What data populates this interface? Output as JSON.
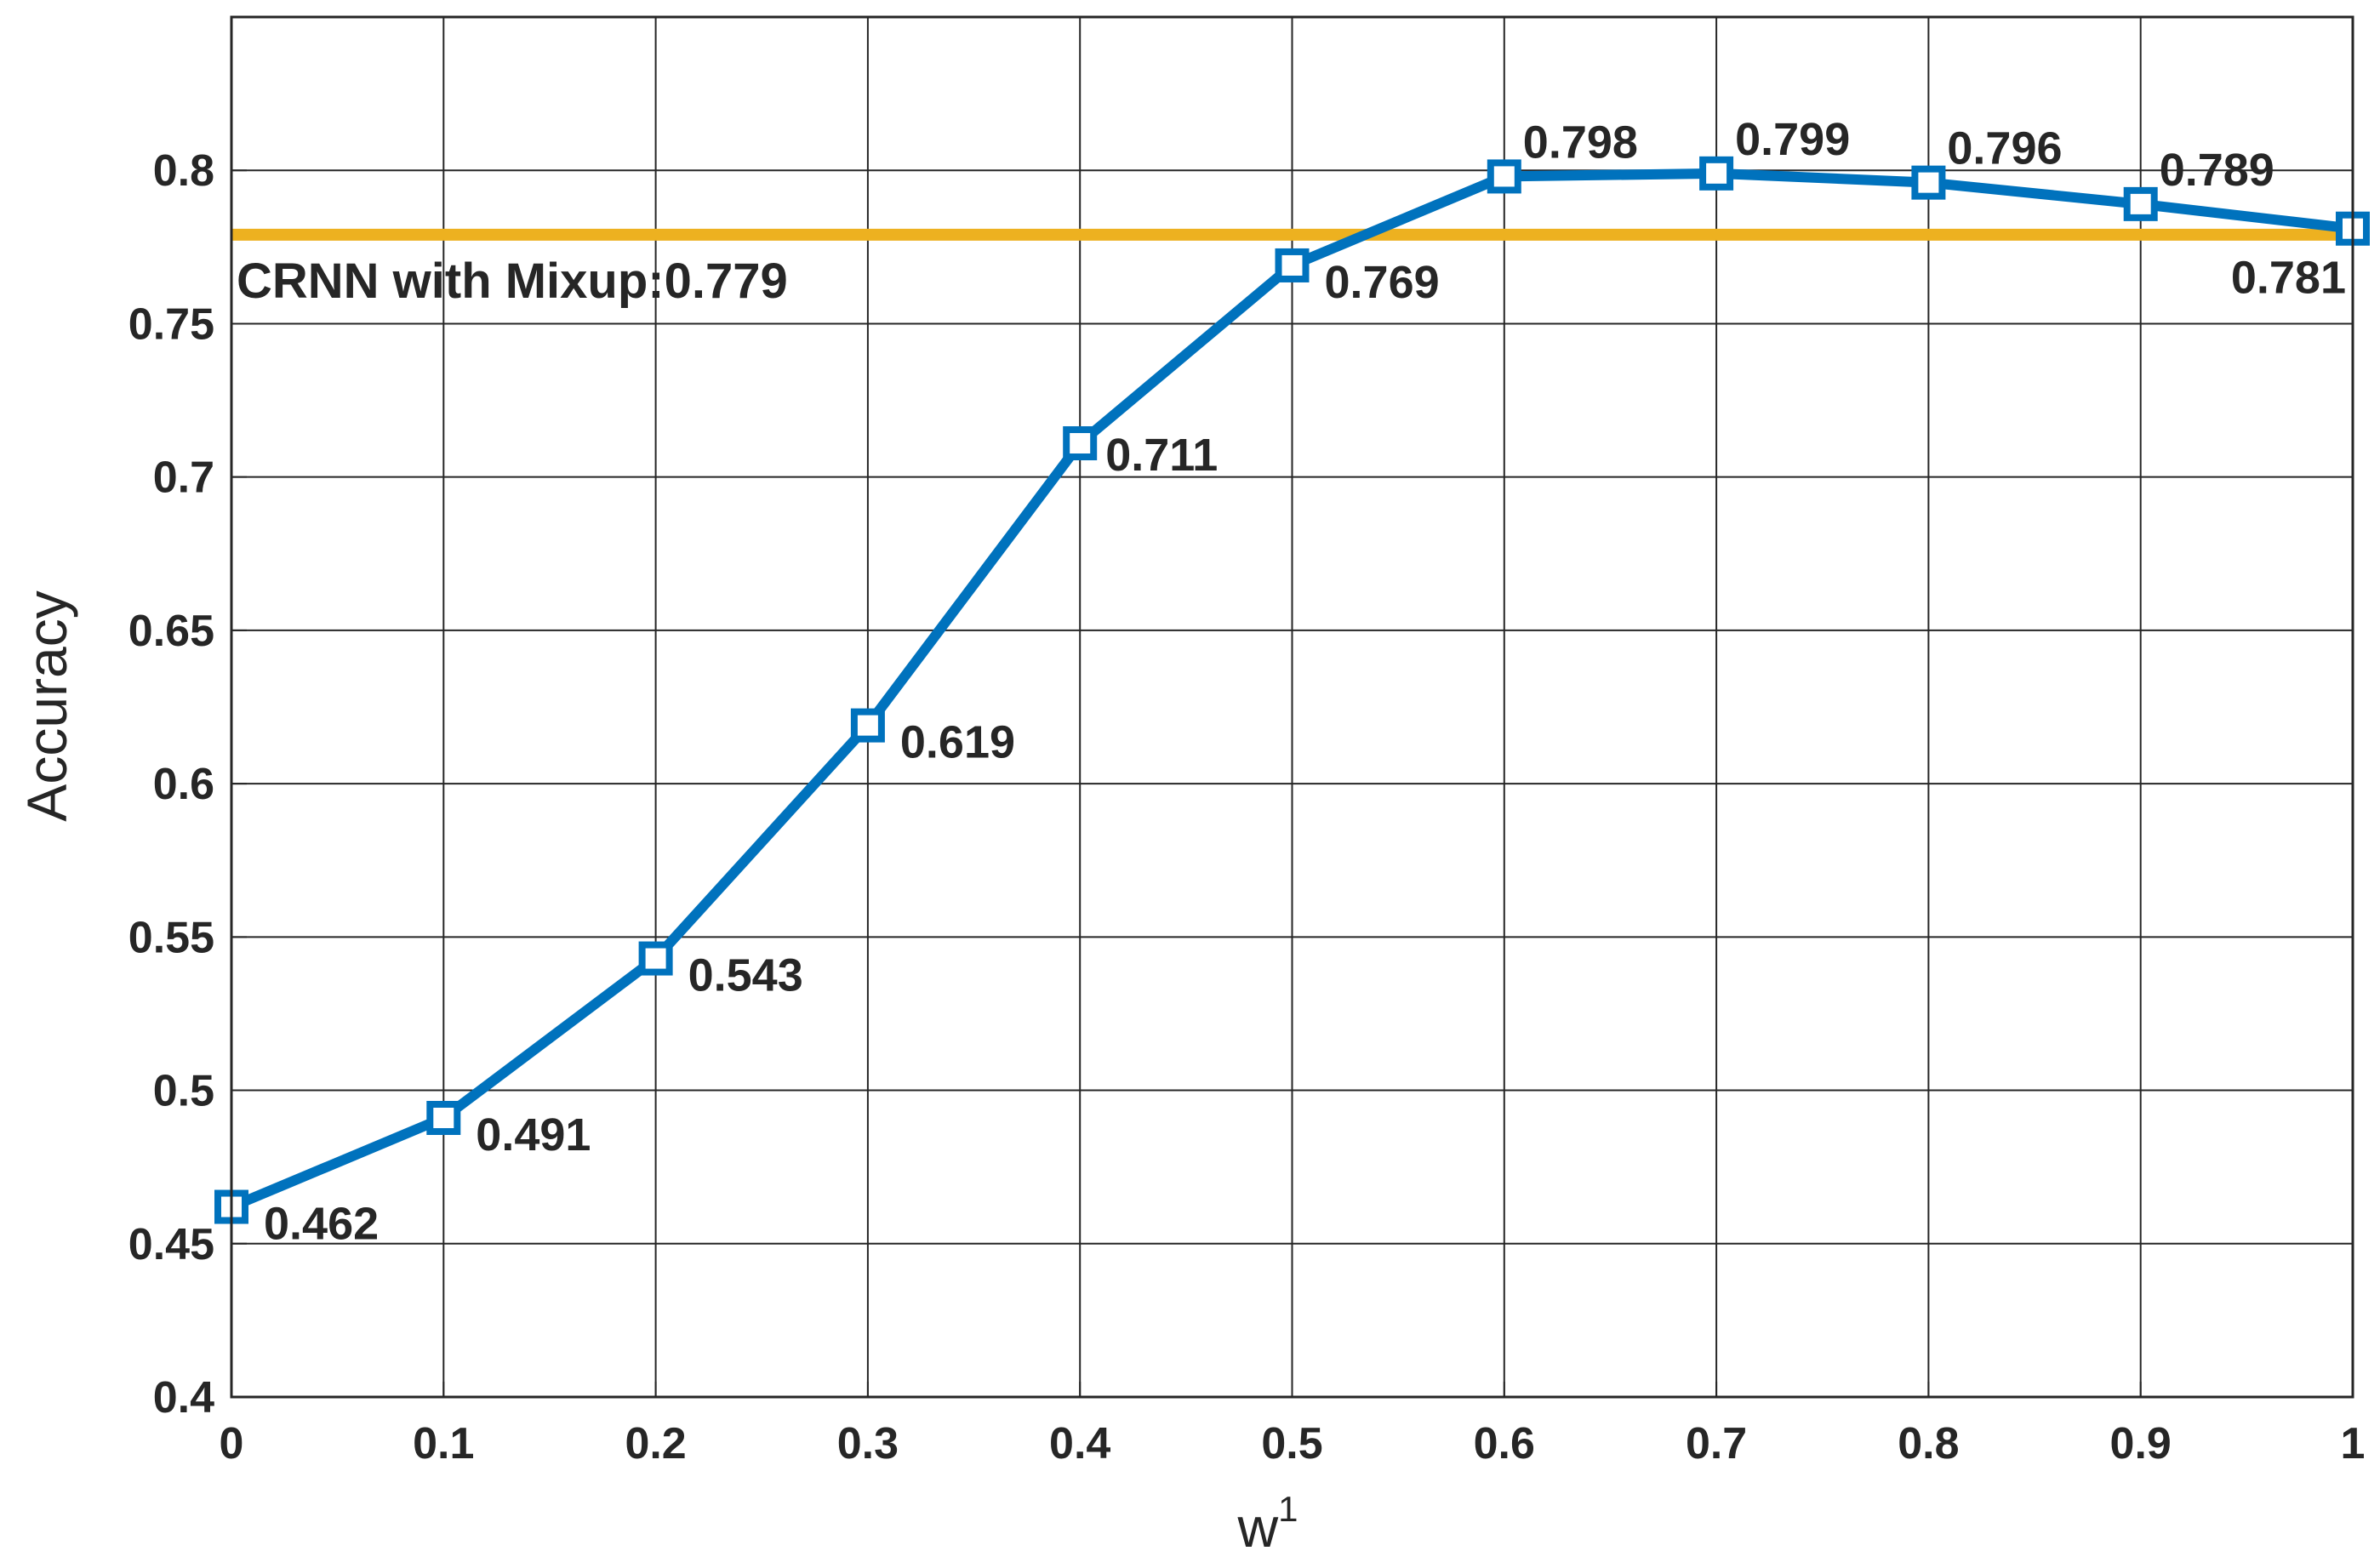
{
  "chart_data": {
    "type": "line",
    "title": "",
    "xlabel": "w",
    "xlabel_superscript": "1",
    "ylabel": "Accuracy",
    "xlim": [
      0,
      1
    ],
    "ylim": [
      0.4,
      0.85
    ],
    "grid": true,
    "x_ticks": [
      "0",
      "0.1",
      "0.2",
      "0.3",
      "0.4",
      "0.5",
      "0.6",
      "0.7",
      "0.8",
      "0.9",
      "1"
    ],
    "y_ticks": [
      "0.4",
      "0.45",
      "0.5",
      "0.55",
      "0.6",
      "0.65",
      "0.7",
      "0.75",
      "0.8"
    ],
    "series": [
      {
        "name": "accuracy",
        "color": "#0072BD",
        "marker": "square",
        "x": [
          0,
          0.1,
          0.2,
          0.3,
          0.4,
          0.5,
          0.6,
          0.7,
          0.8,
          0.9,
          1.0
        ],
        "values": [
          0.462,
          0.491,
          0.543,
          0.619,
          0.711,
          0.769,
          0.798,
          0.799,
          0.796,
          0.789,
          0.781
        ],
        "labels": [
          "0.462",
          "0.491",
          "0.543",
          "0.619",
          "0.711",
          "0.769",
          "0.798",
          "0.799",
          "0.796",
          "0.789",
          "0.781"
        ],
        "label_positions": [
          "below-right",
          "below-right",
          "below-right",
          "below-right",
          "right",
          "below-right",
          "above-right",
          "above-right",
          "above-right",
          "above-right",
          "below-left"
        ]
      }
    ],
    "reference_line": {
      "value": 0.779,
      "color": "#EDB120",
      "label": "CRNN with Mixup:0.779"
    }
  }
}
